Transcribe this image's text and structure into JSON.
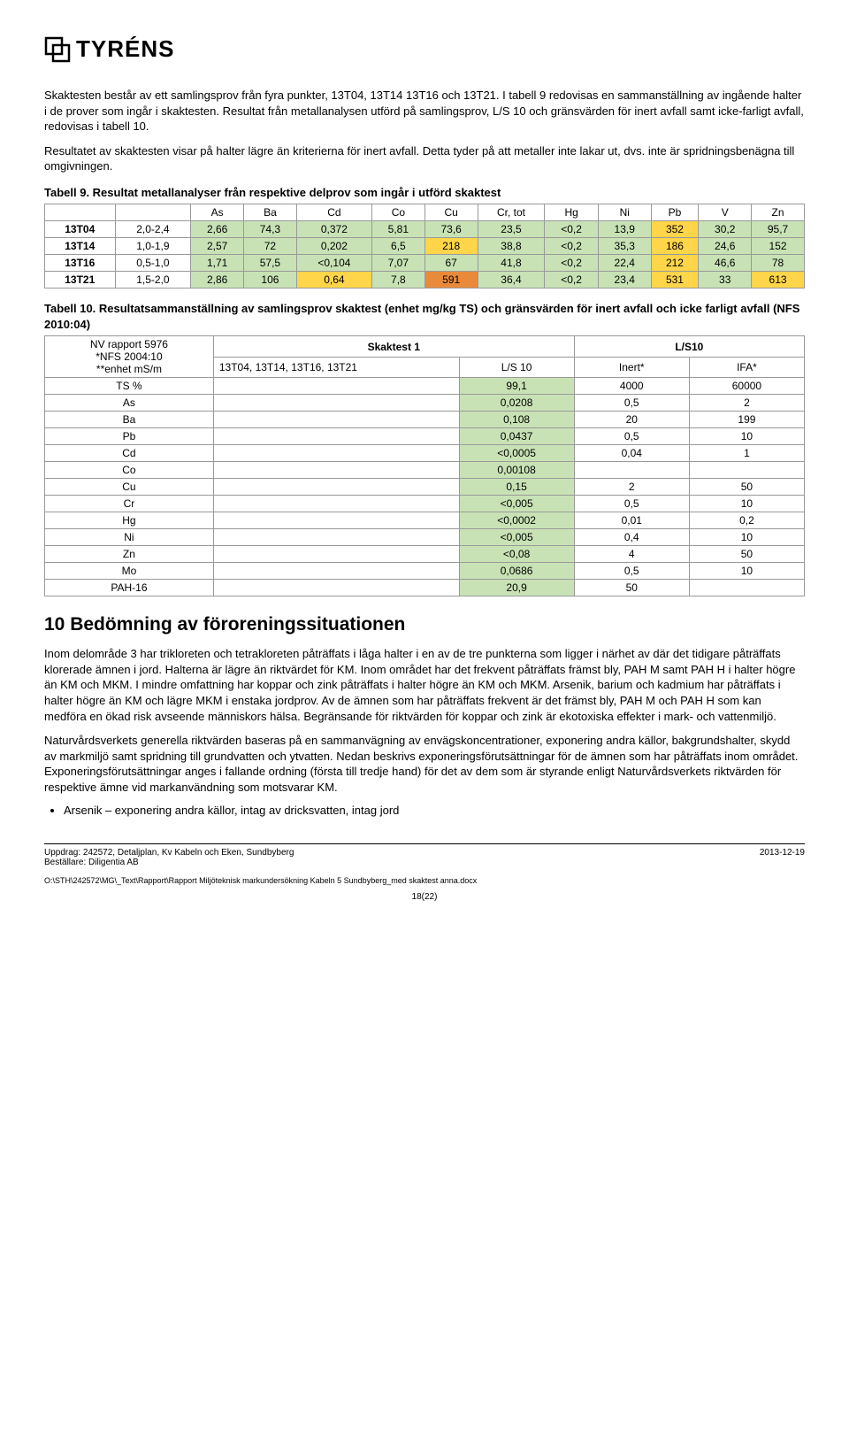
{
  "logo_text": "TYRÉNS",
  "para1": "Skaktesten består av ett samlingsprov från fyra punkter, 13T04, 13T14 13T16 och 13T21. I tabell 9 redovisas en sammanställning av ingående halter i de prover som ingår i skaktesten. Resultat från metallanalysen utförd på samlingsprov, L/S 10 och gränsvärden för inert avfall samt icke-farligt avfall, redovisas i tabell 10.",
  "para2": "Resultatet av skaktesten visar på halter lägre än kriterierna för inert avfall. Detta tyder på att metaller inte lakar ut, dvs. inte är spridningsbenägna till omgivningen.",
  "t9_caption": "Tabell 9. Resultat metallanalyser från respektive delprov som ingår i utförd skaktest",
  "t9_cols": [
    "",
    "",
    "As",
    "Ba",
    "Cd",
    "Co",
    "Cu",
    "Cr, tot",
    "Hg",
    "Ni",
    "Pb",
    "V",
    "Zn"
  ],
  "t9_rows": [
    {
      "id": "13T04",
      "rng": "2,0-2,4",
      "cells": [
        {
          "v": "2,66",
          "c": "#c8e2b5"
        },
        {
          "v": "74,3",
          "c": "#c8e2b5"
        },
        {
          "v": "0,372",
          "c": "#c8e2b5"
        },
        {
          "v": "5,81",
          "c": "#c8e2b5"
        },
        {
          "v": "73,6",
          "c": "#c8e2b5"
        },
        {
          "v": "23,5",
          "c": "#c8e2b5"
        },
        {
          "v": "<0,2",
          "c": "#c8e2b5"
        },
        {
          "v": "13,9",
          "c": "#c8e2b5"
        },
        {
          "v": "352",
          "c": "#ffd54a"
        },
        {
          "v": "30,2",
          "c": "#c8e2b5"
        },
        {
          "v": "95,7",
          "c": "#c8e2b5"
        }
      ]
    },
    {
      "id": "13T14",
      "rng": "1,0-1,9",
      "cells": [
        {
          "v": "2,57",
          "c": "#c8e2b5"
        },
        {
          "v": "72",
          "c": "#c8e2b5"
        },
        {
          "v": "0,202",
          "c": "#c8e2b5"
        },
        {
          "v": "6,5",
          "c": "#c8e2b5"
        },
        {
          "v": "218",
          "c": "#ffd54a"
        },
        {
          "v": "38,8",
          "c": "#c8e2b5"
        },
        {
          "v": "<0,2",
          "c": "#c8e2b5"
        },
        {
          "v": "35,3",
          "c": "#c8e2b5"
        },
        {
          "v": "186",
          "c": "#ffd54a"
        },
        {
          "v": "24,6",
          "c": "#c8e2b5"
        },
        {
          "v": "152",
          "c": "#c8e2b5"
        }
      ]
    },
    {
      "id": "13T16",
      "rng": "0,5-1,0",
      "cells": [
        {
          "v": "1,71",
          "c": "#c8e2b5"
        },
        {
          "v": "57,5",
          "c": "#c8e2b5"
        },
        {
          "v": "<0,104",
          "c": "#c8e2b5"
        },
        {
          "v": "7,07",
          "c": "#c8e2b5"
        },
        {
          "v": "67",
          "c": "#c8e2b5"
        },
        {
          "v": "41,8",
          "c": "#c8e2b5"
        },
        {
          "v": "<0,2",
          "c": "#c8e2b5"
        },
        {
          "v": "22,4",
          "c": "#c8e2b5"
        },
        {
          "v": "212",
          "c": "#ffd54a"
        },
        {
          "v": "46,6",
          "c": "#c8e2b5"
        },
        {
          "v": "78",
          "c": "#c8e2b5"
        }
      ]
    },
    {
      "id": "13T21",
      "rng": "1,5-2,0",
      "cells": [
        {
          "v": "2,86",
          "c": "#c8e2b5"
        },
        {
          "v": "106",
          "c": "#c8e2b5"
        },
        {
          "v": "0,64",
          "c": "#ffd54a"
        },
        {
          "v": "7,8",
          "c": "#c8e2b5"
        },
        {
          "v": "591",
          "c": "#e98a3a"
        },
        {
          "v": "36,4",
          "c": "#c8e2b5"
        },
        {
          "v": "<0,2",
          "c": "#c8e2b5"
        },
        {
          "v": "23,4",
          "c": "#c8e2b5"
        },
        {
          "v": "531",
          "c": "#ffd54a"
        },
        {
          "v": "33",
          "c": "#c8e2b5"
        },
        {
          "v": "613",
          "c": "#ffd54a"
        }
      ]
    }
  ],
  "t10_caption": "Tabell 10. Resultatsammanställning av samlingsprov skaktest (enhet mg/kg TS) och gränsvärden för inert avfall och icke farligt avfall (NFS 2010:04)",
  "t10_hdr_left1": "NV rapport 5976",
  "t10_hdr_left2": "*NFS 2004:10",
  "t10_hdr_left3": "**enhet mS/m",
  "t10_hdr_sk": "Skaktest 1",
  "t10_hdr_ls": "L/S10",
  "t10_sub_left": "13T04, 13T14, 13T16, 13T21",
  "t10_sub_ls": "L/S 10",
  "t10_sub_inert": "Inert*",
  "t10_sub_ifa": "IFA*",
  "t10_rows": [
    {
      "n": "TS %",
      "a": "",
      "b": "99,1",
      "c": "4000",
      "d": "60000"
    },
    {
      "n": "As",
      "a": "",
      "b": "0,0208",
      "c": "0,5",
      "d": "2"
    },
    {
      "n": "Ba",
      "a": "",
      "b": "0,108",
      "c": "20",
      "d": "199"
    },
    {
      "n": "Pb",
      "a": "",
      "b": "0,0437",
      "c": "0,5",
      "d": "10"
    },
    {
      "n": "Cd",
      "a": "",
      "b": "<0,0005",
      "c": "0,04",
      "d": "1"
    },
    {
      "n": "Co",
      "a": "",
      "b": "0,00108",
      "c": "",
      "d": ""
    },
    {
      "n": "Cu",
      "a": "",
      "b": "0,15",
      "c": "2",
      "d": "50"
    },
    {
      "n": "Cr",
      "a": "",
      "b": "<0,005",
      "c": "0,5",
      "d": "10"
    },
    {
      "n": "Hg",
      "a": "",
      "b": "<0,0002",
      "c": "0,01",
      "d": "0,2"
    },
    {
      "n": "Ni",
      "a": "",
      "b": "<0,005",
      "c": "0,4",
      "d": "10"
    },
    {
      "n": "Zn",
      "a": "",
      "b": "<0,08",
      "c": "4",
      "d": "50"
    },
    {
      "n": "Mo",
      "a": "",
      "b": "0,0686",
      "c": "0,5",
      "d": "10"
    },
    {
      "n": "PAH-16",
      "a": "",
      "b": "20,9",
      "c": "50",
      "d": ""
    }
  ],
  "t10_col_b_bg": "#c8e2b5",
  "h2": "10   Bedömning av föroreningssituationen",
  "para3": "Inom delområde 3 har trikloreten och tetrakloreten påträffats i låga halter i en av de tre punkterna som ligger i närhet av där det tidigare påträffats klorerade ämnen i jord. Halterna är lägre än riktvärdet för KM. Inom området har det frekvent påträffats främst bly, PAH M samt PAH H i halter högre än KM och MKM. I mindre omfattning har koppar och zink påträffats i halter högre än KM och MKM. Arsenik, barium och kadmium har påträffats i halter högre än KM och lägre MKM i enstaka jordprov. Av de ämnen som har påträffats frekvent är det främst bly, PAH M och PAH H som kan medföra en ökad risk avseende människors hälsa. Begränsande för riktvärden för koppar och zink är ekotoxiska effekter i mark- och vattenmiljö.",
  "para4": "Naturvårdsverkets generella riktvärden baseras på en sammanvägning av envägskoncentrationer, exponering andra källor, bakgrundshalter, skydd av markmiljö samt spridning till grundvatten och ytvatten. Nedan beskrivs exponeringsförutsättningar för de ämnen som har påträffats inom området. Exponeringsförutsättningar anges i fallande ordning (första till tredje hand) för det av dem som är styrande enligt Naturvårdsverkets riktvärden för respektive ämne vid markanvändning som motsvarar KM.",
  "bullet": "Arsenik – exponering andra källor, intag av dricksvatten, intag jord",
  "footer_uppdrag": "Uppdrag: 242572, Detaljplan, Kv Kabeln och Eken, Sundbyberg",
  "footer_best": "Beställare: Diligentia AB",
  "footer_date": "2013-12-19",
  "footer_path": "O:\\STH\\242572\\MG\\_Text\\Rapport\\Rapport Miljöteknisk markundersökning Kabeln 5 Sundbyberg_med skaktest anna.docx",
  "page_num": "18(22)"
}
